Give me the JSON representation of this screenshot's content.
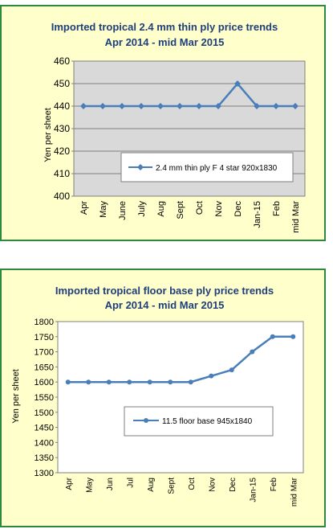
{
  "chart_data": [
    {
      "type": "line",
      "title": "Imported tropical 2.4 mm thin ply price trends",
      "subtitle": "Apr 2014 - mid Mar 2015",
      "ylabel": "Yen per sheet",
      "xlabel": "",
      "categories": [
        "Apr",
        "May",
        "June",
        "July",
        "Aug",
        "Sept",
        "Oct",
        "Nov",
        "Dec",
        "Jan-15",
        "Feb",
        "mid Mar"
      ],
      "yticks": [
        "400",
        "410",
        "420",
        "430",
        "440",
        "450",
        "460"
      ],
      "ylim": [
        400,
        460
      ],
      "grid": true,
      "legend_position": "inside-lower-center",
      "series": [
        {
          "name": "2.4 mm thin ply F 4 star 920x1830",
          "values": [
            440,
            440,
            440,
            440,
            440,
            440,
            440,
            440,
            450,
            440,
            440,
            440
          ]
        }
      ]
    },
    {
      "type": "line",
      "title": "Imported tropical floor base ply price trends",
      "subtitle": "Apr 2014 - mid Mar 2015",
      "ylabel": "Yen per sheet",
      "xlabel": "",
      "categories": [
        "Apr",
        "May",
        "Jun",
        "Jul",
        "Aug",
        "Sept",
        "Oct",
        "Nov",
        "Dec",
        "Jan-15",
        "Feb",
        "mid Mar"
      ],
      "yticks": [
        "1300",
        "1350",
        "1400",
        "1450",
        "1500",
        "1550",
        "1600",
        "1650",
        "1700",
        "1750",
        "1800"
      ],
      "ylim": [
        1300,
        1800
      ],
      "grid": false,
      "legend_position": "inside-lower-center",
      "series": [
        {
          "name": "11.5 floor base 945x1840",
          "values": [
            1600,
            1600,
            1600,
            1600,
            1600,
            1600,
            1600,
            1620,
            1640,
            1700,
            1750,
            1750
          ]
        }
      ]
    }
  ],
  "colors": {
    "title": "#1f3f7a",
    "series": "#4a7ebb",
    "plot_area_1": "#d9d9d9",
    "plot_area_2": "#ffffff",
    "panel_background": "#ffffcc",
    "panel_border": "#2b8a3e"
  }
}
